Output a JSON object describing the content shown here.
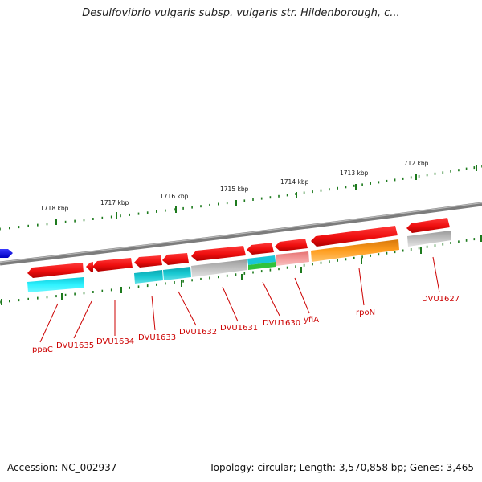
{
  "title": "Desulfovibrio vulgaris subsp. vulgaris str. Hildenborough, c...",
  "footer": {
    "accession": "Accession: NC_002937",
    "summary": "Topology: circular; Length: 3,570,858 bp; Genes: 3,465"
  },
  "scale_labels": [
    "1718 kbp",
    "1717 kbp",
    "1716 kbp",
    "1715 kbp",
    "1714 kbp",
    "1713 kbp",
    "1712 kbp"
  ],
  "gene_labels": [
    "ppaC",
    "DVU1635",
    "DVU1634",
    "DVU1633",
    "DVU1632",
    "DVU1631",
    "DVU1630",
    "yfiA",
    "rpoN",
    "DVU1627"
  ],
  "colors": {
    "backbone": "#8a8a8a",
    "scale_ticks": "#1d7a1d",
    "gene_strand": "#ee1111",
    "label": "#cc0000",
    "upstream_gene": "#1010ee",
    "cog_cyan": "#15d6e6",
    "cog_teal": "#12bcc4",
    "cog_gray": "#bdbdbd",
    "cog_green": "#2fc23b",
    "cog_pink": "#f08a8a",
    "cog_orange": "#ff9a1a"
  }
}
